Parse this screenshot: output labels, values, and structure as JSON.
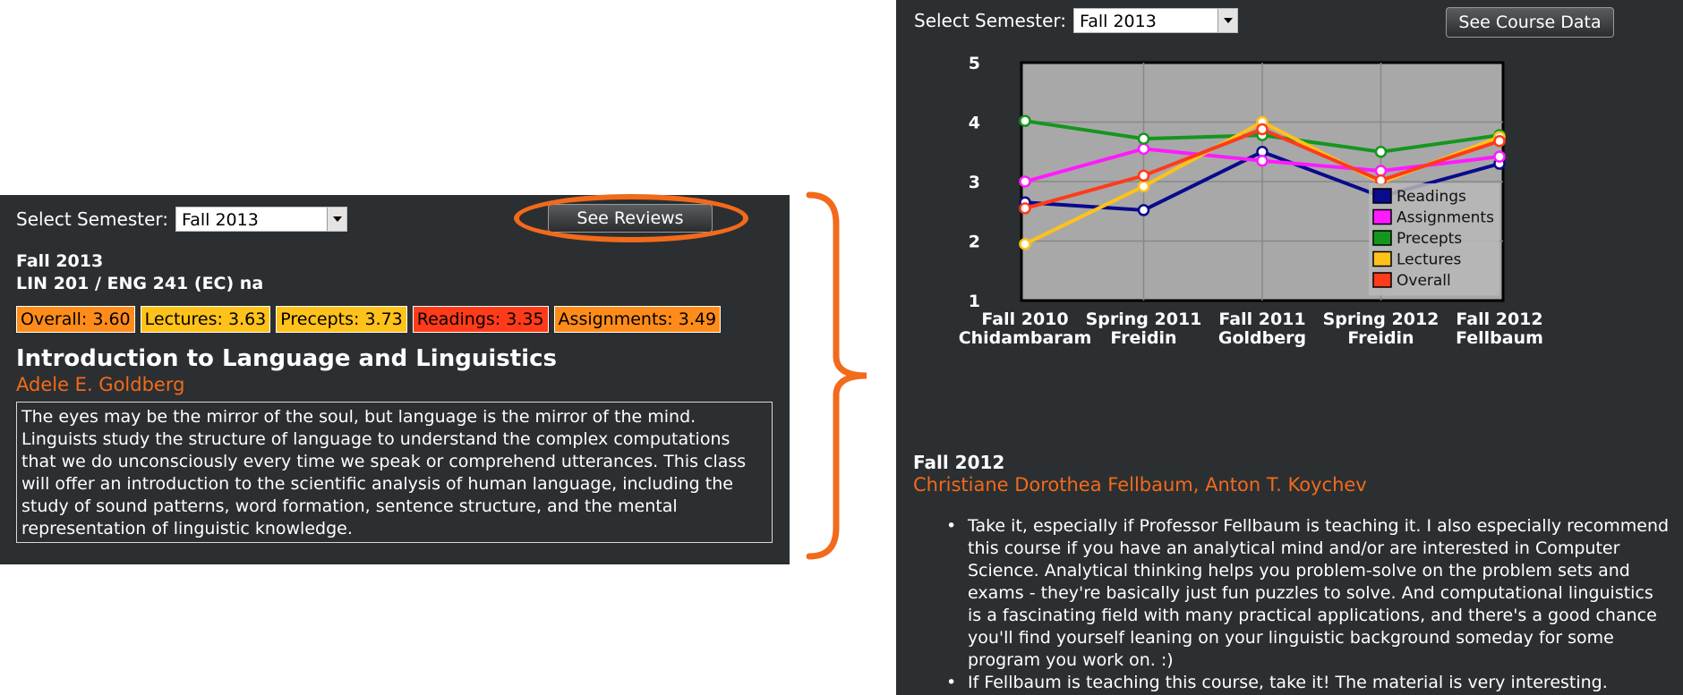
{
  "left": {
    "select_label": "Select Semester:",
    "selected_semester": "Fall 2013",
    "see_reviews_label": "See Reviews",
    "term": "Fall 2013",
    "listing": "LIN 201 / ENG 241 (EC) na",
    "ratings": [
      {
        "label": "Overall: 3.60",
        "color": "#ff8c1a"
      },
      {
        "label": "Lectures: 3.63",
        "color": "#ffc21a"
      },
      {
        "label": "Precepts: 3.73",
        "color": "#ffc21a"
      },
      {
        "label": "Readings: 3.35",
        "color": "#ff3b1a"
      },
      {
        "label": "Assignments: 3.49",
        "color": "#ff8c1a"
      }
    ],
    "course_title": "Introduction to Language and Linguistics",
    "instructor": "Adele E. Goldberg",
    "description": "The eyes may be the mirror of the soul, but language is the mirror of the mind. Linguists study the structure of language to understand the complex computations that we do unconsciously every time we speak or comprehend utterances. This class will offer an introduction to the scientific analysis of human language, including the study of sound patterns, word formation, sentence structure, and the mental representation of linguistic knowledge."
  },
  "right": {
    "select_label": "Select Semester:",
    "selected_semester": "Fall 2013",
    "see_course_data_label": "See Course Data",
    "term": "Fall 2012",
    "instructors": "Christiane Dorothea Fellbaum, Anton T. Koychev",
    "reviews": [
      "Take it, especially if Professor Fellbaum is teaching it. I also especially recommend this course if you have an analytical mind and/or are interested in Computer Science. Analytical thinking helps you problem-solve on the problem sets and exams - they're basically just fun puzzles to solve. And computational linguistics is a fascinating field with many practical applications, and there's a good chance you'll find yourself leaning on your linguistic background someday for some program you work on. :)",
      "If Fellbaum is teaching this course, take it! The material is very interesting."
    ]
  },
  "colors": {
    "accent": "#f26a1b",
    "panel_bg": "#2b2f31",
    "plot_bg": "#a8a8a8"
  },
  "chart_data": {
    "type": "line",
    "categories": [
      [
        "Fall 2010",
        "Chidambaram"
      ],
      [
        "Spring 2011",
        "Freidin"
      ],
      [
        "Fall 2011",
        "Goldberg"
      ],
      [
        "Spring 2012",
        "Freidin"
      ],
      [
        "Fall 2012",
        "Fellbaum"
      ]
    ],
    "ylim": [
      1,
      5
    ],
    "yticks": [
      1,
      2,
      3,
      4,
      5
    ],
    "grid": true,
    "legend_placement": "bottom-right",
    "series": [
      {
        "name": "Readings",
        "color": "#0a0a8c",
        "values": [
          2.65,
          2.52,
          3.5,
          2.75,
          3.3
        ]
      },
      {
        "name": "Assignments",
        "color": "#ff1aff",
        "values": [
          3.0,
          3.55,
          3.35,
          3.18,
          3.42
        ]
      },
      {
        "name": "Precepts",
        "color": "#14961e",
        "values": [
          4.02,
          3.72,
          3.78,
          3.5,
          3.78
        ]
      },
      {
        "name": "Lectures",
        "color": "#ffc21a",
        "values": [
          1.95,
          2.92,
          4.0,
          2.98,
          3.75
        ]
      },
      {
        "name": "Overall",
        "color": "#ff3b1a",
        "values": [
          2.55,
          3.1,
          3.88,
          3.02,
          3.68
        ]
      }
    ]
  }
}
